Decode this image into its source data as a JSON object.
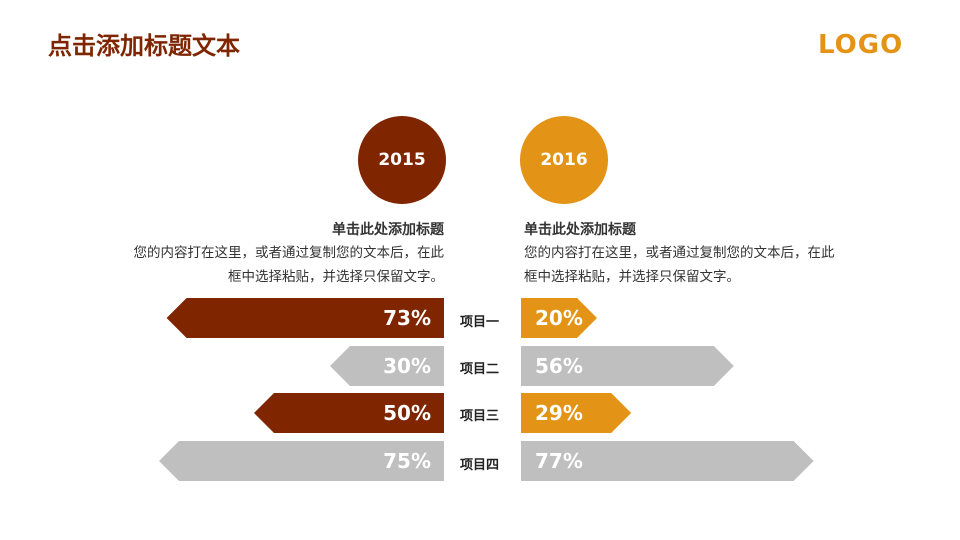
{
  "header": {
    "title": "点击添加标题文本",
    "logo": "LOGO"
  },
  "years": {
    "left": "2015",
    "right": "2016"
  },
  "left_block": {
    "heading": "单击此处添加标题",
    "body_line1": "您的内容打在这里，或者通过复制您的文本后，在此",
    "body_line2": "框中选择粘贴，并选择只保留文字。"
  },
  "right_block": {
    "heading": "单击此处添加标题",
    "body_line1": "您的内容打在这里，或者通过复制您的文本后，在此",
    "body_line2": "框中选择粘贴，并选择只保留文字。"
  },
  "items": [
    {
      "label": "项目一",
      "left_value": 73,
      "left_text": "73%",
      "left_highlight": true,
      "right_value": 20,
      "right_text": "20%",
      "right_highlight": true
    },
    {
      "label": "项目二",
      "left_value": 30,
      "left_text": "30%",
      "left_highlight": false,
      "right_value": 56,
      "right_text": "56%",
      "right_highlight": false
    },
    {
      "label": "项目三",
      "left_value": 50,
      "left_text": "50%",
      "left_highlight": true,
      "right_value": 29,
      "right_text": "29%",
      "right_highlight": true
    },
    {
      "label": "项目四",
      "left_value": 75,
      "left_text": "75%",
      "left_highlight": false,
      "right_value": 77,
      "right_text": "77%",
      "right_highlight": false
    }
  ],
  "colors": {
    "left_accent": "#7f2500",
    "right_accent": "#e39315",
    "neutral": "#bfbfbf",
    "title": "#7f2500"
  }
}
